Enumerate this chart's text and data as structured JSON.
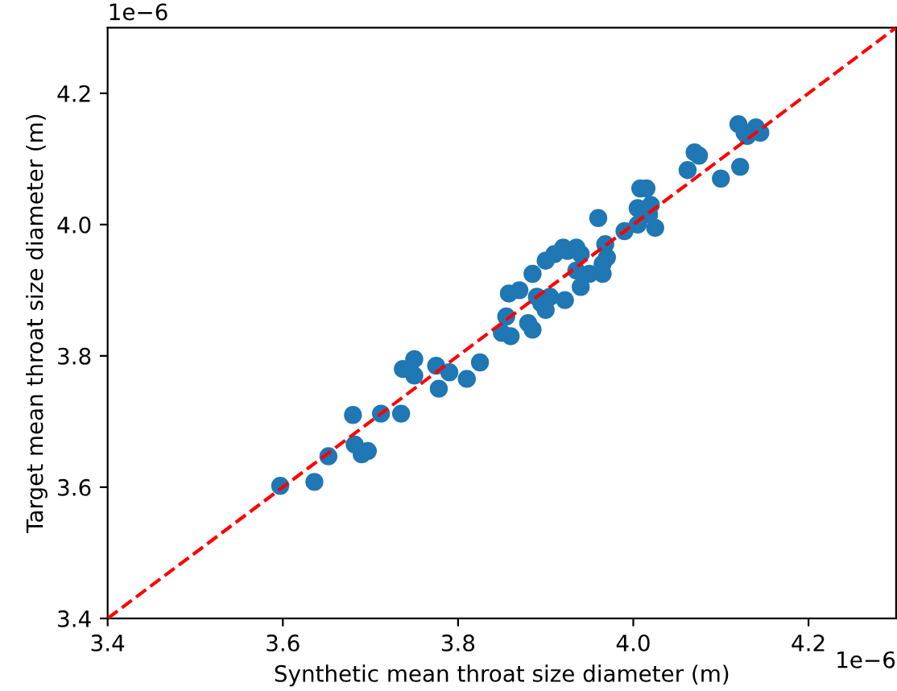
{
  "chart_data": {
    "type": "scatter",
    "xlabel": "Synthetic mean throat size diameter (m)",
    "ylabel": "Target mean throat size diameter (m)",
    "annotations": [
      "1e−6",
      "1e−6"
    ],
    "xlim": [
      3.4,
      4.3
    ],
    "ylim": [
      3.4,
      4.3
    ],
    "xticks": [
      3.4,
      3.6,
      3.8,
      {
        "value": 4.0,
        "label": "4.0"
      },
      4.2
    ],
    "yticks": [
      3.4,
      3.6,
      3.8,
      {
        "value": 4.0,
        "label": "4.0"
      },
      4.2
    ],
    "marker": "circle",
    "series": [
      {
        "color": "#1f77b4",
        "x": [
          3.597,
          3.636,
          3.652,
          3.68,
          3.682,
          3.69,
          3.697,
          3.712,
          3.735,
          3.737,
          3.75,
          3.75,
          3.775,
          3.778,
          3.79,
          3.81,
          3.825,
          3.85,
          3.855,
          3.858,
          3.86,
          3.87,
          3.88,
          3.885,
          3.885,
          3.89,
          3.895,
          3.9,
          3.9,
          3.905,
          3.91,
          3.92,
          3.922,
          3.925,
          3.935,
          3.935,
          3.94,
          3.94,
          3.95,
          3.96,
          3.965,
          3.965,
          3.968,
          3.97,
          3.99,
          4.005,
          4.005,
          4.008,
          4.015,
          4.018,
          4.02,
          4.025,
          4.062,
          4.07,
          4.075,
          4.1,
          4.12,
          4.122,
          4.127,
          4.13,
          4.14,
          4.145
        ],
        "values": [
          3.602,
          3.608,
          3.647,
          3.71,
          3.665,
          3.65,
          3.655,
          3.712,
          3.712,
          3.78,
          3.795,
          3.77,
          3.785,
          3.75,
          3.775,
          3.765,
          3.79,
          3.835,
          3.86,
          3.895,
          3.83,
          3.9,
          3.85,
          3.84,
          3.925,
          3.89,
          3.88,
          3.87,
          3.945,
          3.89,
          3.955,
          3.965,
          3.885,
          3.96,
          3.965,
          3.93,
          3.905,
          3.955,
          3.925,
          4.01,
          3.925,
          3.94,
          3.97,
          3.95,
          3.99,
          4.0,
          4.025,
          4.055,
          4.055,
          4.015,
          4.03,
          3.995,
          4.083,
          4.11,
          4.105,
          4.07,
          4.153,
          4.088,
          4.14,
          4.135,
          4.148,
          4.14
        ]
      },
      {
        "type": "line",
        "color": "#ff0000",
        "line_style": "dashed",
        "marker": "none",
        "x": [
          3.4,
          4.3
        ],
        "values": [
          3.4,
          4.3
        ]
      }
    ]
  }
}
